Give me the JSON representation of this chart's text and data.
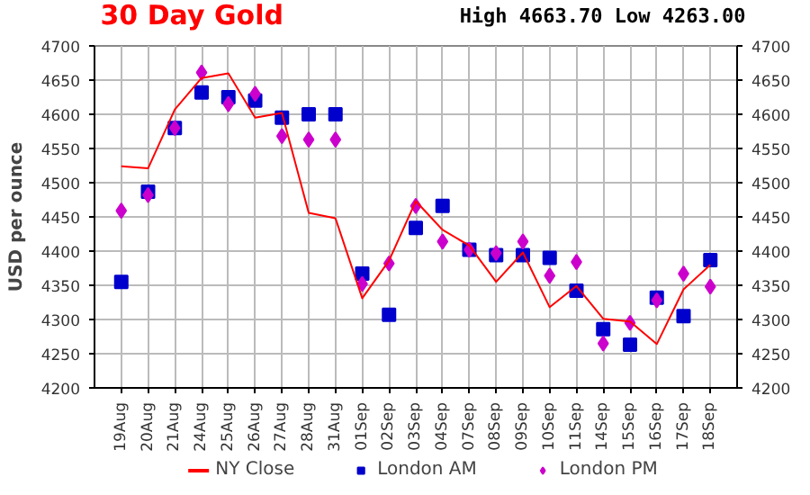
{
  "chart_data": {
    "type": "line",
    "title": "30 Day Gold",
    "annotations": [
      "High 4663.70 Low 4263.00"
    ],
    "ylabel": "USD per ounce",
    "categories": [
      "19Aug",
      "20Aug",
      "21Aug",
      "24Aug",
      "25Aug",
      "26Aug",
      "27Aug",
      "28Aug",
      "31Aug",
      "01Sep",
      "02Sep",
      "03Sep",
      "04Sep",
      "07Sep",
      "08Sep",
      "09Sep",
      "10Sep",
      "11Sep",
      "14Sep",
      "15Sep",
      "16Sep",
      "17Sep",
      "18Sep"
    ],
    "series": [
      {
        "name": "NY Close",
        "type": "line",
        "marker": "none",
        "color": "#ff0000",
        "values": [
          4524,
          4521,
          4607,
          4653,
          4660,
          4595,
          4602,
          4456,
          4448,
          4331,
          4386,
          4473,
          4431,
          4408,
          4355,
          4398,
          4318,
          4349,
          4301,
          4297,
          4264,
          4344,
          4380
        ]
      },
      {
        "name": "London AM",
        "type": "scatter",
        "marker": "square",
        "color": "#0000cc",
        "values": [
          4355,
          4487,
          4580,
          4632,
          4625,
          4620,
          4595,
          4600,
          4600,
          4367,
          4307,
          4434,
          4466,
          4402,
          4394,
          4394,
          4390,
          4342,
          4286,
          4263,
          4332,
          4305,
          4387
        ]
      },
      {
        "name": "London PM",
        "type": "scatter",
        "marker": "diamond",
        "color": "#cc00cc",
        "values": [
          4459,
          4482,
          4580,
          4661,
          4615,
          4630,
          4568,
          4563,
          4563,
          4352,
          4382,
          4466,
          4414,
          4402,
          4397,
          4414,
          4364,
          4384,
          4265,
          4295,
          4328,
          4367,
          4348
        ]
      }
    ],
    "ylim": [
      4200,
      4700
    ],
    "yticks": [
      4200,
      4250,
      4300,
      4350,
      4400,
      4450,
      4500,
      4550,
      4600,
      4650,
      4700
    ],
    "y2lim": [
      4200,
      4700
    ],
    "y2ticks": [
      4200,
      4250,
      4300,
      4350,
      4400,
      4450,
      4500,
      4550,
      4600,
      4650,
      4700
    ],
    "grid": true,
    "legend": "bottom"
  }
}
